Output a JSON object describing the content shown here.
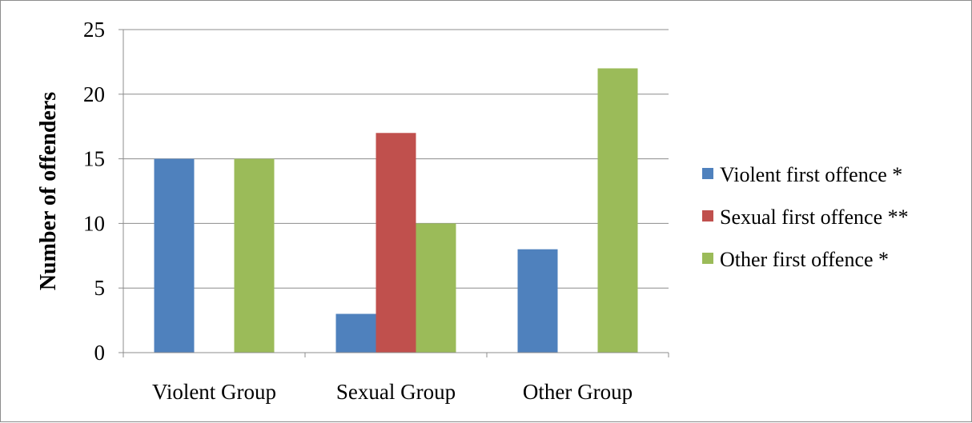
{
  "chart_data": {
    "type": "bar",
    "title": "",
    "xlabel": "",
    "ylabel": "Number of offenders",
    "ylim": [
      0,
      25
    ],
    "yticks": [
      0,
      5,
      10,
      15,
      20,
      25
    ],
    "grid": true,
    "legend_position": "right",
    "categories": [
      "Violent Group",
      "Sexual Group",
      "Other Group"
    ],
    "series": [
      {
        "name": "Violent first offence *",
        "color": "#4f81bd",
        "values": [
          15,
          3,
          8
        ]
      },
      {
        "name": "Sexual first offence **",
        "color": "#c0504d",
        "values": [
          0,
          17,
          0
        ]
      },
      {
        "name": "Other first offence *",
        "color": "#9bbb59",
        "values": [
          15,
          10,
          22
        ]
      }
    ]
  }
}
